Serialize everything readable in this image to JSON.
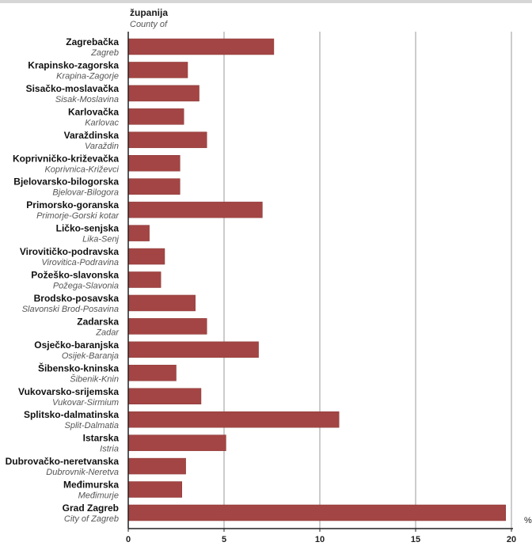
{
  "chart_data": {
    "type": "bar",
    "orientation": "horizontal",
    "category_header": {
      "hr": "županija",
      "en": "County of"
    },
    "categories": [
      {
        "hr": "Zagrebačka",
        "en": "Zagreb"
      },
      {
        "hr": "Krapinsko-zagorska",
        "en": "Krapina-Zagorje"
      },
      {
        "hr": "Sisačko-moslavačka",
        "en": "Sisak-Moslavina"
      },
      {
        "hr": "Karlovačka",
        "en": "Karlovac"
      },
      {
        "hr": "Varaždinska",
        "en": "Varaždin"
      },
      {
        "hr": "Koprivničko-križevačka",
        "en": "Koprivnica-Križevci"
      },
      {
        "hr": "Bjelovarsko-bilogorska",
        "en": "Bjelovar-Bilogora"
      },
      {
        "hr": "Primorsko-goranska",
        "en": "Primorje-Gorski kotar"
      },
      {
        "hr": "Ličko-senjska",
        "en": "Lika-Senj"
      },
      {
        "hr": "Virovitičko-podravska",
        "en": "Virovitica-Podravina"
      },
      {
        "hr": "Požeško-slavonska",
        "en": "Požega-Slavonia"
      },
      {
        "hr": "Brodsko-posavska",
        "en": "Slavonski Brod-Posavina"
      },
      {
        "hr": "Zadarska",
        "en": "Zadar"
      },
      {
        "hr": "Osječko-baranjska",
        "en": "Osijek-Baranja"
      },
      {
        "hr": "Šibensko-kninska",
        "en": "Šibenik-Knin"
      },
      {
        "hr": "Vukovarsko-srijemska",
        "en": "Vukovar-Sirmium"
      },
      {
        "hr": "Splitsko-dalmatinska",
        "en": "Split-Dalmatia"
      },
      {
        "hr": "Istarska",
        "en": "Istria"
      },
      {
        "hr": "Dubrovačko-neretvanska",
        "en": "Dubrovnik-Neretva"
      },
      {
        "hr": "Međimurska",
        "en": "Međimurje"
      },
      {
        "hr": "Grad Zagreb",
        "en": "City of Zagreb"
      }
    ],
    "values": [
      7.6,
      3.1,
      3.7,
      2.9,
      4.1,
      2.7,
      2.7,
      7.0,
      1.1,
      1.9,
      1.7,
      3.5,
      4.1,
      6.8,
      2.5,
      3.8,
      11.0,
      5.1,
      3.0,
      2.8,
      19.7
    ],
    "xlim": [
      0,
      20
    ],
    "xticks": [
      0,
      5,
      10,
      15,
      20
    ],
    "xunit": "%",
    "grid": "vertical",
    "colors": {
      "bar": "#a34544",
      "bar_stroke": "#8a3837",
      "grid": "#9a9a9a",
      "axis": "#222222"
    }
  }
}
